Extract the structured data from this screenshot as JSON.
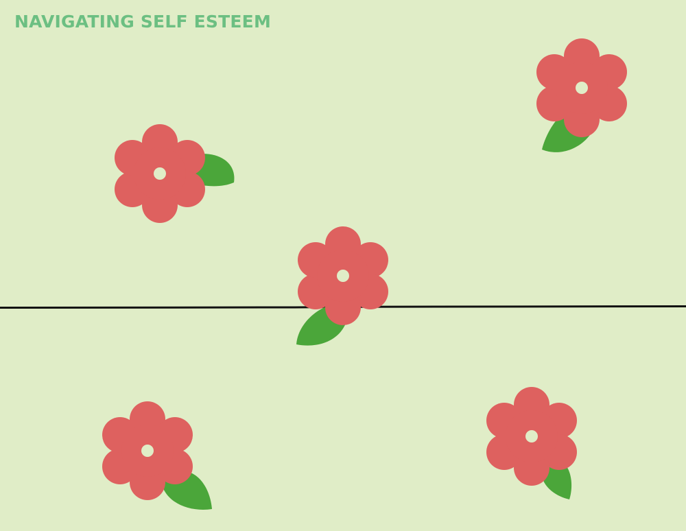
{
  "page": {
    "title": "NAVIGATING SELF ESTEEM"
  },
  "colors": {
    "background": "#e0edc7",
    "title": "#6cbf82",
    "petal": "#de615f",
    "leaf": "#4ba63a",
    "flower_center": "#e0edc7",
    "divider_line": "#111111"
  },
  "decorations": {
    "flower_icon": "flower-icon",
    "leaf_icon": "leaf-icon",
    "flower_count": 5
  }
}
